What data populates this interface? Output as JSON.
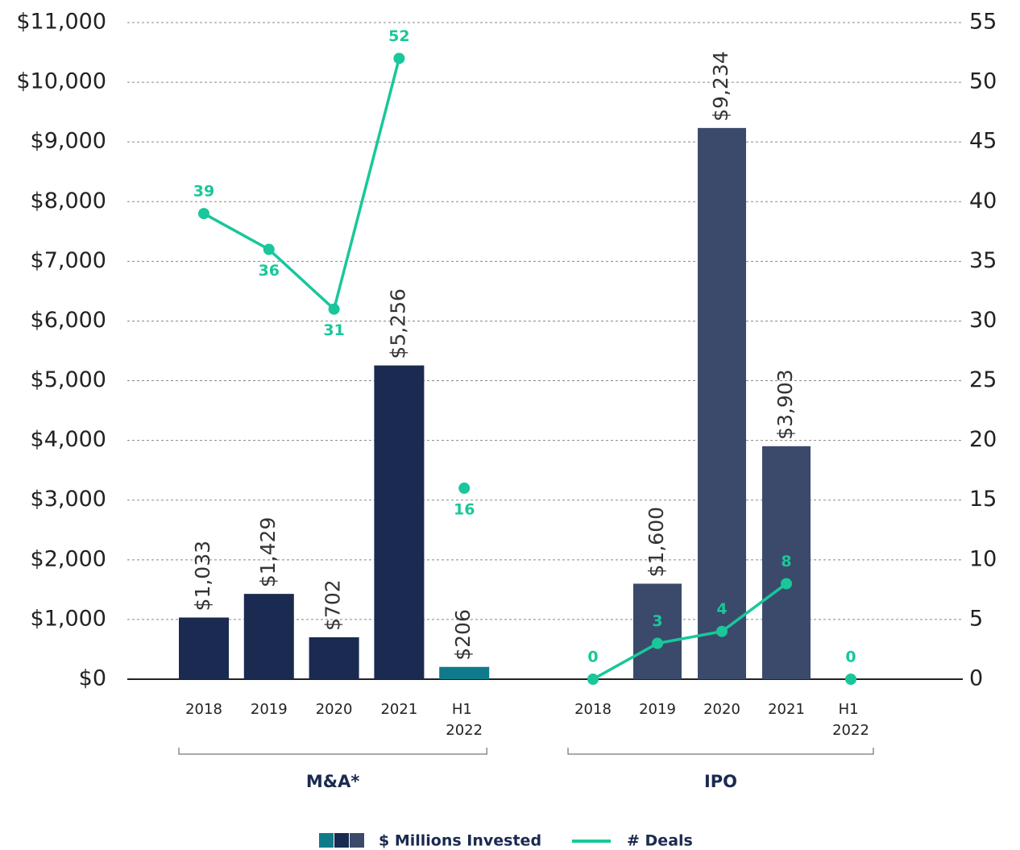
{
  "chart_data": {
    "type": "bar",
    "categories": [
      "2018",
      "2019",
      "2020",
      "2021",
      "H1 2022",
      "2018",
      "2019",
      "2020",
      "2021",
      "H1 2022"
    ],
    "groups": [
      {
        "label": "M&A*",
        "start": 0,
        "count": 5
      },
      {
        "label": "IPO",
        "start": 5,
        "count": 5
      }
    ],
    "series": [
      {
        "name": "$ Millions Invested",
        "type": "bar",
        "colors": [
          "#1a2a50",
          "#1a2a50",
          "#1a2a50",
          "#1a2a50",
          "#0e7a8a",
          "#3b4a6b",
          "#3b4a6b",
          "#3b4a6b",
          "#3b4a6b",
          "#3b4a6b"
        ],
        "legend_colors": [
          "#0e7a8a",
          "#1a2a50",
          "#3b4a6b"
        ],
        "values": [
          1033,
          1429,
          702,
          5256,
          206,
          null,
          1600,
          9234,
          3903,
          null
        ],
        "value_labels": [
          "$1,033",
          "$1,429",
          "$702",
          "$5,256",
          "$206",
          null,
          "$1,600",
          "$9,234",
          "$3,903",
          null
        ]
      },
      {
        "name": "# Deals",
        "type": "line",
        "axis": "y2",
        "color": "#19c79a",
        "values": [
          39,
          36,
          31,
          52,
          16,
          0,
          3,
          4,
          8,
          0
        ]
      }
    ],
    "ylim": [
      0,
      11000
    ],
    "yticks": [
      {
        "value": 0,
        "label": "$0"
      },
      {
        "value": 1000,
        "label": "$1,000"
      },
      {
        "value": 2000,
        "label": "$2,000"
      },
      {
        "value": 3000,
        "label": "$3,000"
      },
      {
        "value": 4000,
        "label": "$4,000"
      },
      {
        "value": 5000,
        "label": "$5,000"
      },
      {
        "value": 6000,
        "label": "$6,000"
      },
      {
        "value": 7000,
        "label": "$7,000"
      },
      {
        "value": 8000,
        "label": "$8,000"
      },
      {
        "value": 9000,
        "label": "$9,000"
      },
      {
        "value": 10000,
        "label": "$10,000"
      },
      {
        "value": 11000,
        "label": "$11,000"
      }
    ],
    "y2lim": [
      0,
      55
    ],
    "y2ticks": [
      0,
      5,
      10,
      15,
      20,
      25,
      30,
      35,
      40,
      45,
      50,
      55
    ],
    "grid": true
  }
}
